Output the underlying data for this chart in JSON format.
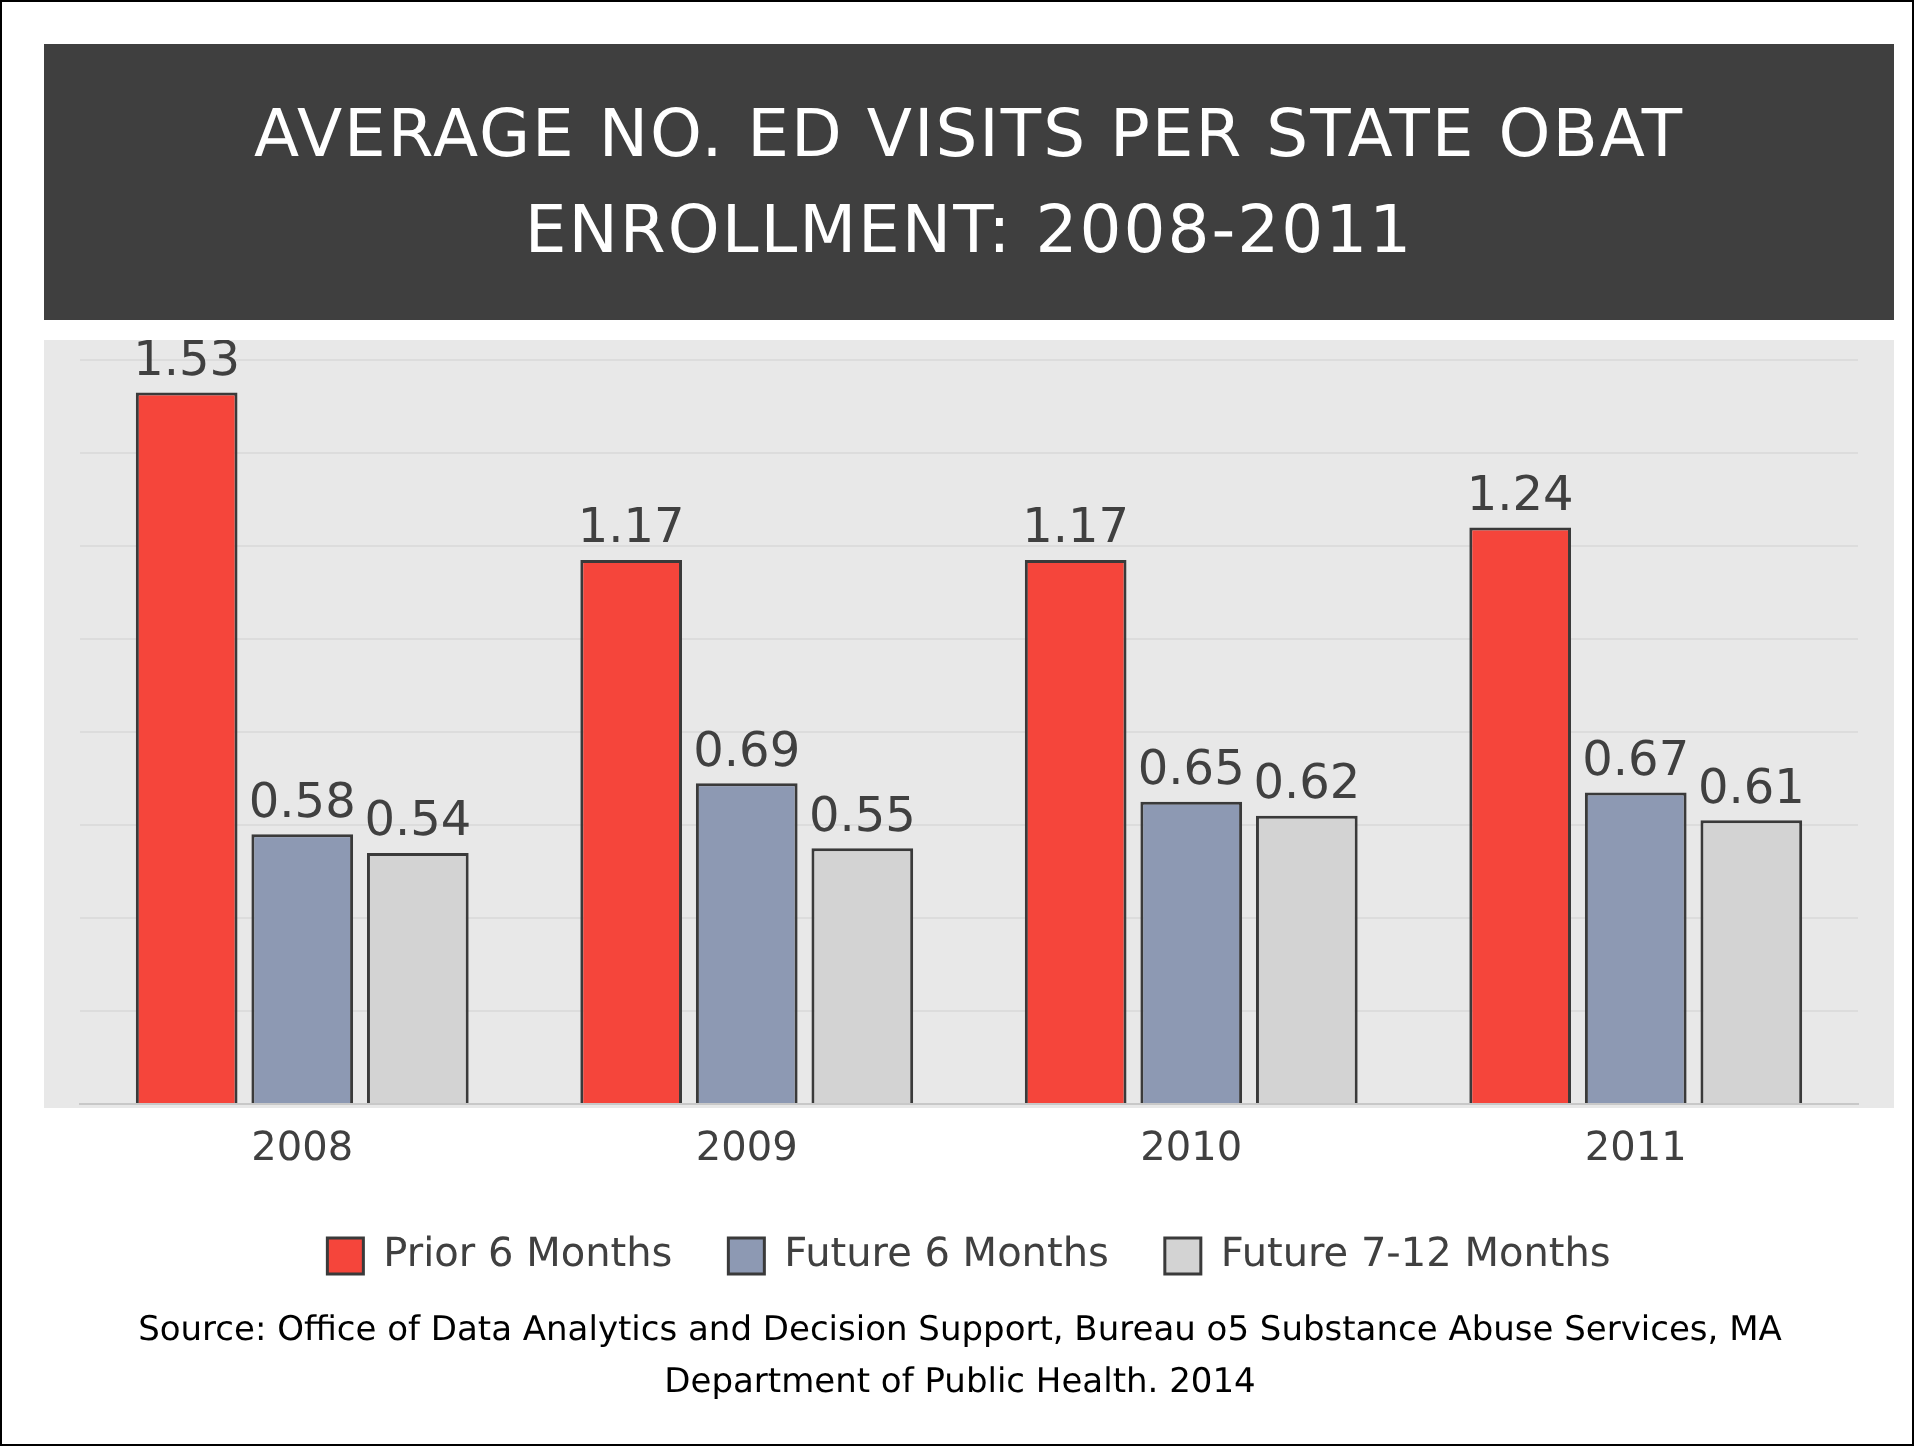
{
  "chart_data": {
    "type": "bar",
    "title": "AVERAGE NO. ED VISITS PER STATE OBAT ENROLLMENT: 2008-2011",
    "categories": [
      "2008",
      "2009",
      "2010",
      "2011"
    ],
    "series": [
      {
        "name": "Prior 6 Months",
        "color": "#f5453b",
        "values": [
          1.53,
          1.17,
          1.17,
          1.24
        ]
      },
      {
        "name": "Future 6 Months",
        "color": "#8d99b3",
        "values": [
          0.58,
          0.69,
          0.65,
          0.67
        ]
      },
      {
        "name": "Future 7-12 Months",
        "color": "#d3d3d3",
        "values": [
          0.54,
          0.55,
          0.62,
          0.61
        ]
      }
    ],
    "grid": "y",
    "legend": "bottom",
    "data_labels": true,
    "tick_labels": "x",
    "annotations": [
      "Source: Office of Data Analytics and Decision Support, Bureau o5 Substance Abuse Services, MA Department of Public Health. 2014"
    ]
  }
}
